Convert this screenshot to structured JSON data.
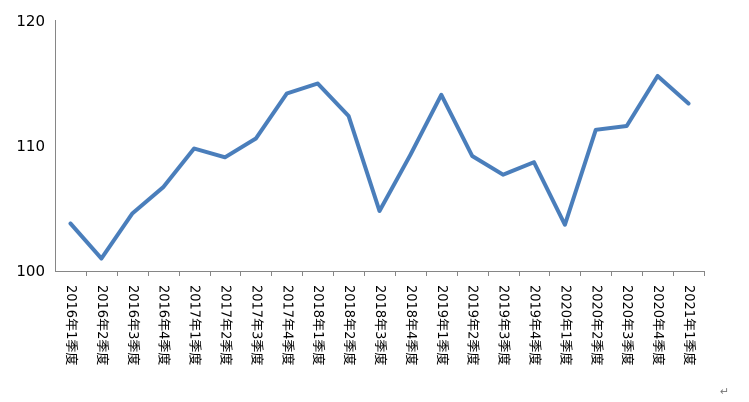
{
  "chart_data": {
    "type": "line",
    "categories": [
      "2016年1季度",
      "2016年2季度",
      "2016年3季度",
      "2016年4季度",
      "2017年1季度",
      "2017年2季度",
      "2017年3季度",
      "2017年4季度",
      "2018年1季度",
      "2018年2季度",
      "2018年3季度",
      "2018年4季度",
      "2019年1季度",
      "2019年2季度",
      "2019年3季度",
      "2019年4季度",
      "2020年1季度",
      "2020年2季度",
      "2020年3季度",
      "2020年4季度",
      "2021年1季度"
    ],
    "values": [
      103.8,
      101.0,
      104.6,
      106.7,
      109.8,
      109.1,
      110.6,
      114.2,
      115.0,
      112.4,
      104.8,
      109.3,
      114.1,
      109.2,
      107.7,
      108.7,
      103.7,
      111.3,
      111.6,
      115.6,
      113.4
    ],
    "title": "",
    "xlabel": "",
    "ylabel": "",
    "ylim": [
      100,
      120
    ],
    "yticks": [
      "100",
      "110",
      "120"
    ],
    "grid": false,
    "line_color": "#4a7ebb"
  },
  "return_mark": "↵"
}
